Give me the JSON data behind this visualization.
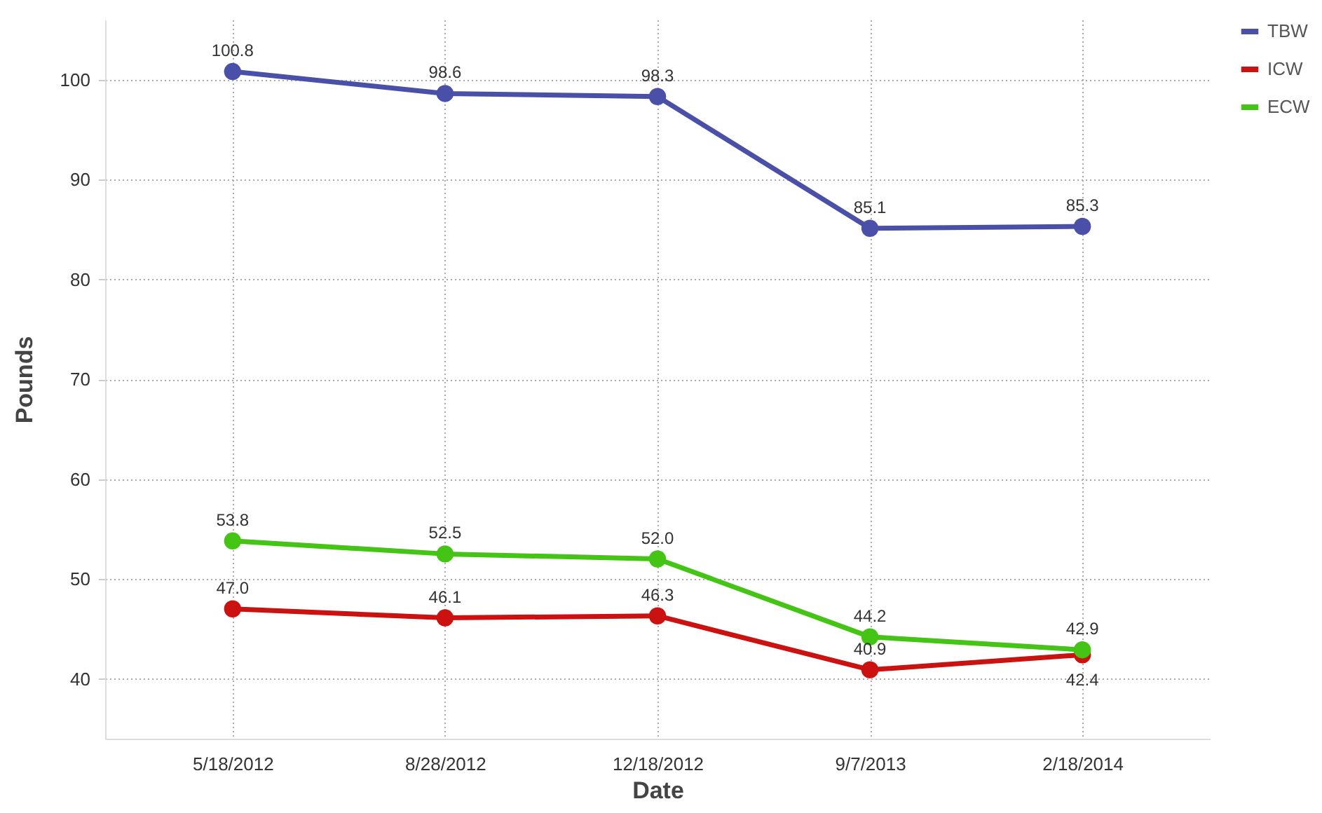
{
  "chart_data": {
    "type": "line",
    "xlabel": "Date",
    "ylabel": "Pounds",
    "categories": [
      "5/18/2012",
      "8/28/2012",
      "12/18/2012",
      "9/7/2013",
      "2/18/2014"
    ],
    "series": [
      {
        "name": "TBW",
        "color": "#4a50a8",
        "values": [
          100.8,
          98.6,
          98.3,
          85.1,
          85.3
        ],
        "value_labels": [
          "100.8",
          "98.6",
          "98.3",
          "85.1",
          "85.3"
        ]
      },
      {
        "name": "ICW",
        "color": "#cc1111",
        "values": [
          47.0,
          46.1,
          46.3,
          40.9,
          42.4
        ],
        "value_labels": [
          "47.0",
          "46.1",
          "46.3",
          "40.9",
          "42.4"
        ]
      },
      {
        "name": "ECW",
        "color": "#44c414",
        "values": [
          53.8,
          52.5,
          52.0,
          44.2,
          42.9
        ],
        "value_labels": [
          "53.8",
          "52.5",
          "52.0",
          "44.2",
          "42.9"
        ]
      }
    ],
    "ylim": [
      34,
      106
    ],
    "yticks": [
      40,
      50,
      60,
      70,
      80,
      90,
      100
    ],
    "grid": true,
    "legend": "top right",
    "marker": "circle",
    "line_style": "solid"
  }
}
